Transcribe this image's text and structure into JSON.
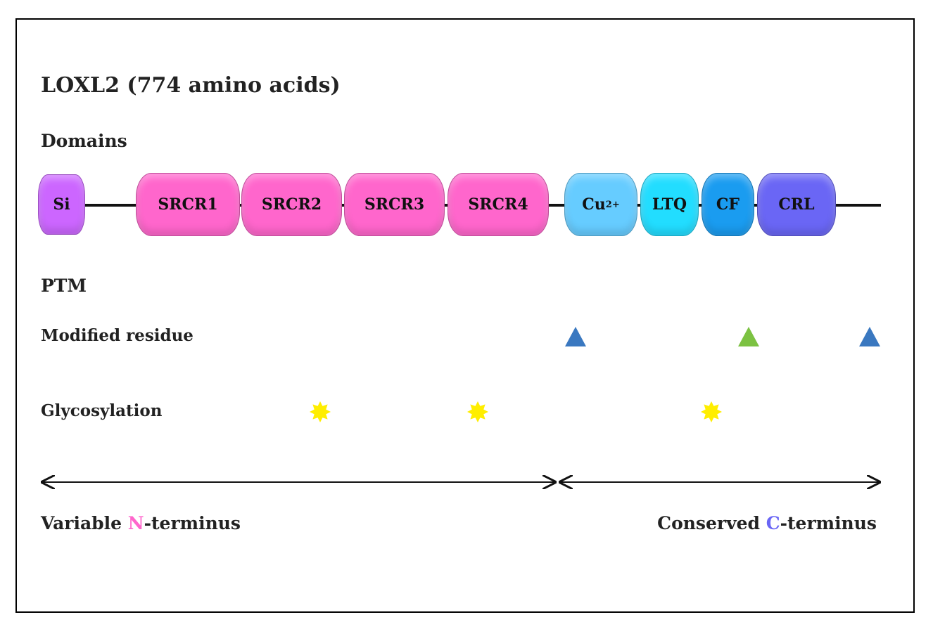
{
  "title": "LOXL2  (774 amino acids)",
  "sections": {
    "domains": "Domains",
    "ptm": "PTM"
  },
  "domains": [
    {
      "label": "Si",
      "color": "#cc66ff"
    },
    {
      "label": "SRCR1",
      "color": "#ff66cc"
    },
    {
      "label": "SRCR2",
      "color": "#ff66cc"
    },
    {
      "label": "SRCR3",
      "color": "#ff66cc"
    },
    {
      "label": "SRCR4",
      "color": "#ff66cc"
    },
    {
      "label": "Cu",
      "sup": "2+",
      "color": "#66ccff"
    },
    {
      "label": "LTQ",
      "color": "#22ddff"
    },
    {
      "label": "CF",
      "color": "#1a9cf0"
    },
    {
      "label": "CRL",
      "color": "#6a66f5"
    }
  ],
  "ptm_rows": {
    "modified": "Modified residue",
    "glyco": "Glycosylation"
  },
  "modified_colors": [
    "#3a78c0",
    "#7cc242",
    "#3a78c0"
  ],
  "glyco_color": "#ffee00",
  "termini": {
    "n_pre": "Variable ",
    "n_letter": "N",
    "n_post": "-terminus",
    "n_color": "#ff66cc",
    "c_pre": "Conserved ",
    "c_letter": "C",
    "c_post": "-terminus",
    "c_color": "#6a66f5"
  }
}
